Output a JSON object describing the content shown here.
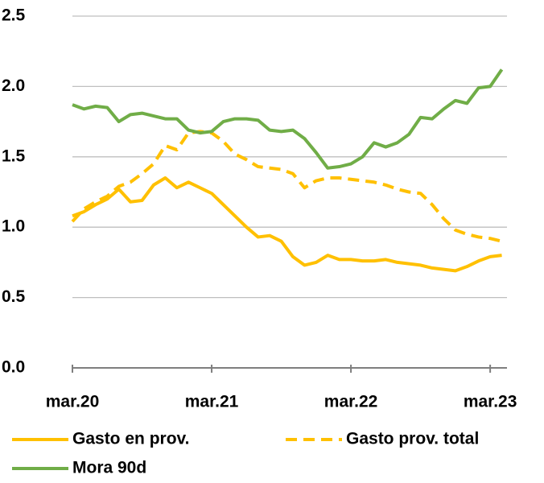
{
  "chart_data": {
    "type": "line",
    "categories": [
      "mar.20",
      null,
      null,
      null,
      null,
      null,
      null,
      null,
      null,
      null,
      null,
      null,
      "mar.21",
      null,
      null,
      null,
      null,
      null,
      null,
      null,
      null,
      null,
      null,
      null,
      "mar.22",
      null,
      null,
      null,
      null,
      null,
      null,
      null,
      null,
      null,
      null,
      null,
      "mar.23",
      null
    ],
    "series": [
      {
        "name": "Gasto en prov.",
        "color": "#ffc000",
        "style": "solid",
        "values": [
          1.08,
          1.11,
          1.16,
          1.2,
          1.27,
          1.18,
          1.19,
          1.3,
          1.35,
          1.28,
          1.32,
          1.28,
          1.24,
          1.16,
          1.08,
          1.0,
          0.93,
          0.94,
          0.9,
          0.79,
          0.73,
          0.75,
          0.8,
          0.77,
          0.77,
          0.76,
          0.76,
          0.77,
          0.75,
          0.74,
          0.73,
          0.71,
          0.7,
          0.69,
          0.72,
          0.76,
          0.79,
          0.8
        ]
      },
      {
        "name": "Gasto prov. total",
        "color": "#ffc000",
        "style": "dashed",
        "values": [
          1.04,
          1.13,
          1.18,
          1.22,
          1.29,
          1.32,
          1.38,
          1.45,
          1.58,
          1.55,
          1.67,
          1.68,
          1.67,
          1.61,
          1.52,
          1.48,
          1.43,
          1.42,
          1.41,
          1.38,
          1.28,
          1.33,
          1.35,
          1.35,
          1.34,
          1.33,
          1.32,
          1.3,
          1.27,
          1.25,
          1.24,
          1.16,
          1.06,
          0.98,
          0.95,
          0.93,
          0.92,
          0.9
        ]
      },
      {
        "name": "Mora 90d",
        "color": "#70ad47",
        "style": "solid",
        "values": [
          1.87,
          1.84,
          1.86,
          1.85,
          1.75,
          1.8,
          1.81,
          1.79,
          1.77,
          1.77,
          1.69,
          1.67,
          1.68,
          1.75,
          1.77,
          1.77,
          1.76,
          1.69,
          1.68,
          1.69,
          1.63,
          1.53,
          1.42,
          1.43,
          1.45,
          1.5,
          1.6,
          1.57,
          1.6,
          1.66,
          1.78,
          1.77,
          1.84,
          1.9,
          1.88,
          1.99,
          2.0,
          2.12
        ]
      }
    ],
    "ylim": [
      0,
      2.5
    ],
    "yticks": [
      {
        "value": 0,
        "label": "0.0"
      },
      0.5,
      {
        "value": 1,
        "label": "1.0"
      },
      1.5,
      {
        "value": 2,
        "label": "2.0"
      },
      2.5
    ],
    "grid": true
  }
}
